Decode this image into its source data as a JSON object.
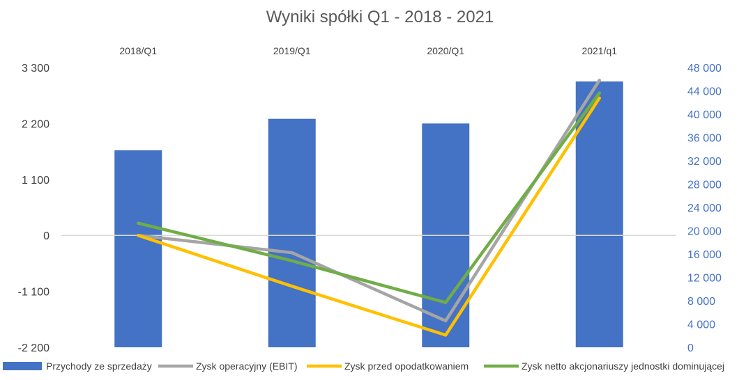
{
  "chart_data": {
    "type": "bar",
    "title": "Wyniki spółki Q1 - 2018 - 2021",
    "categories": [
      "2018/Q1",
      "2019/Q1",
      "2020/Q1",
      "2021/q1"
    ],
    "left_axis": {
      "ticks": [
        "3 300",
        "2 200",
        "1 100",
        "0",
        "-1 100",
        "-2 200"
      ],
      "tick_values": [
        3300,
        2200,
        1100,
        0,
        -1100,
        -2200
      ],
      "ylim": [
        -2200,
        3300
      ]
    },
    "right_axis": {
      "ticks": [
        "48 000",
        "44 000",
        "40 000",
        "36 000",
        "32 000",
        "28 000",
        "24 000",
        "20 000",
        "16 000",
        "12 000",
        "8 000",
        "4 000",
        "0"
      ],
      "tick_values": [
        48000,
        44000,
        40000,
        36000,
        32000,
        28000,
        24000,
        20000,
        16000,
        12000,
        8000,
        4000,
        0
      ],
      "ylim": [
        0,
        48000
      ]
    },
    "series": [
      {
        "name": "Przychody ze sprzedaży",
        "kind": "bar",
        "axis": "right",
        "color": "#4472c4",
        "values": [
          33800,
          39200,
          38400,
          45600
        ]
      },
      {
        "name": "Zysk operacyjny (EBIT)",
        "kind": "line",
        "axis": "left",
        "color": "#a5a5a5",
        "values": [
          0,
          -340,
          -1680,
          3050
        ]
      },
      {
        "name": "Zysk przed opodatkowaniem",
        "kind": "line",
        "axis": "left",
        "color": "#ffc000",
        "values": [
          0,
          -1000,
          -1960,
          2700
        ]
      },
      {
        "name": "Zysk netto akcjonariuszy jednostki dominującej",
        "kind": "line",
        "axis": "left",
        "color": "#70ad47",
        "values": [
          240,
          -500,
          -1320,
          2800
        ]
      }
    ],
    "grid": false,
    "legend_position": "bottom"
  }
}
